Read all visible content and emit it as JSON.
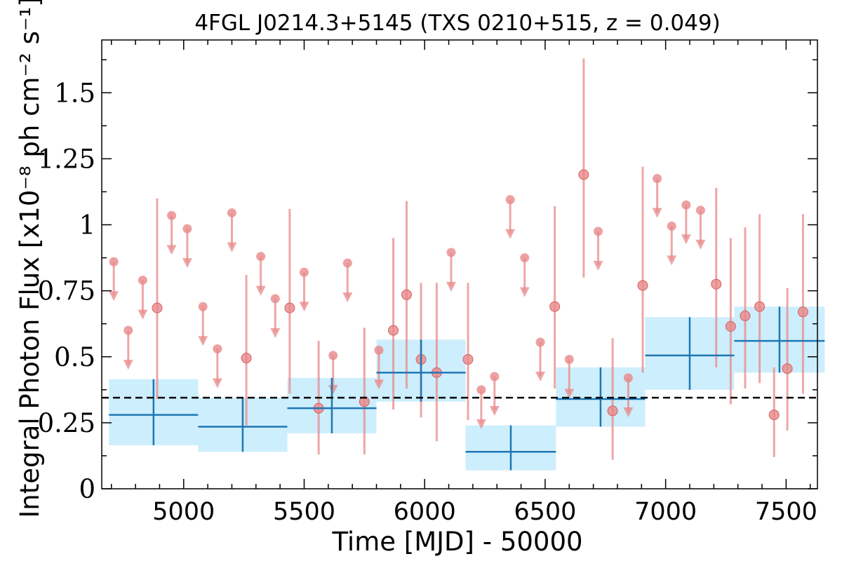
{
  "chart_data": {
    "type": "scatter",
    "title": "4FGL J0214.3+5145 (TXS 0210+515, z = 0.049)",
    "xlabel": "Time [MJD] - 50000",
    "ylabel": "Integral Photon Flux [x10⁻⁸ ph cm⁻² s⁻¹]",
    "xlim": [
      4660,
      7630
    ],
    "ylim": [
      0,
      1.7
    ],
    "x_ticks": [
      5000,
      5500,
      6000,
      6500,
      7000,
      7500
    ],
    "x_tick_labels": [
      "5000",
      "5500",
      "6000",
      "6500",
      "7000",
      "7500"
    ],
    "y_ticks": [
      0,
      0.25,
      0.5,
      0.75,
      1,
      1.25,
      1.5
    ],
    "y_tick_labels": [
      "0",
      "0.25",
      "0.5",
      "0.75",
      "1",
      "1.25",
      "1.5"
    ],
    "grid": false,
    "mean_flux": 0.345,
    "colors": {
      "fine_bins": "#e8888a",
      "coarse_bins": "#1f77b4",
      "coarse_band": "#cdeefc",
      "mean_line": "#000000"
    },
    "series": [
      {
        "binning": "fine",
        "detections": [
          {
            "x": 4890,
            "y": 0.685,
            "ylo": 0.34,
            "yhi": 1.1
          },
          {
            "x": 5260,
            "y": 0.495,
            "ylo": 0.24,
            "yhi": 0.81
          },
          {
            "x": 5440,
            "y": 0.685,
            "ylo": 0.36,
            "yhi": 1.06
          },
          {
            "x": 5560,
            "y": 0.305,
            "ylo": 0.13,
            "yhi": 0.56
          },
          {
            "x": 5750,
            "y": 0.33,
            "ylo": 0.13,
            "yhi": 0.61
          },
          {
            "x": 5870,
            "y": 0.6,
            "ylo": 0.3,
            "yhi": 0.95
          },
          {
            "x": 5925,
            "y": 0.735,
            "ylo": 0.38,
            "yhi": 1.09
          },
          {
            "x": 5985,
            "y": 0.49,
            "ylo": 0.27,
            "yhi": 0.78
          },
          {
            "x": 6050,
            "y": 0.44,
            "ylo": 0.18,
            "yhi": 0.78
          },
          {
            "x": 6180,
            "y": 0.49,
            "ylo": 0.26,
            "yhi": 0.78
          },
          {
            "x": 6540,
            "y": 0.69,
            "ylo": 0.38,
            "yhi": 1.07
          },
          {
            "x": 6660,
            "y": 1.19,
            "ylo": 0.8,
            "yhi": 1.63
          },
          {
            "x": 6780,
            "y": 0.295,
            "ylo": 0.11,
            "yhi": 0.57
          },
          {
            "x": 6905,
            "y": 0.77,
            "ylo": 0.44,
            "yhi": 1.22
          },
          {
            "x": 7210,
            "y": 0.775,
            "ylo": 0.46,
            "yhi": 1.14
          },
          {
            "x": 7270,
            "y": 0.615,
            "ylo": 0.32,
            "yhi": 0.95
          },
          {
            "x": 7330,
            "y": 0.655,
            "ylo": 0.38,
            "yhi": 0.99
          },
          {
            "x": 7390,
            "y": 0.69,
            "ylo": 0.4,
            "yhi": 1.04
          },
          {
            "x": 7450,
            "y": 0.28,
            "ylo": 0.12,
            "yhi": 0.46
          },
          {
            "x": 7505,
            "y": 0.455,
            "ylo": 0.22,
            "yhi": 0.76
          },
          {
            "x": 7570,
            "y": 0.67,
            "ylo": 0.36,
            "yhi": 1.04
          }
        ],
        "upper_limits": [
          {
            "x": 4710,
            "y": 0.86
          },
          {
            "x": 4770,
            "y": 0.6
          },
          {
            "x": 4830,
            "y": 0.79
          },
          {
            "x": 4950,
            "y": 1.035
          },
          {
            "x": 5015,
            "y": 0.985
          },
          {
            "x": 5080,
            "y": 0.69
          },
          {
            "x": 5140,
            "y": 0.53
          },
          {
            "x": 5200,
            "y": 1.045
          },
          {
            "x": 5320,
            "y": 0.88
          },
          {
            "x": 5380,
            "y": 0.72
          },
          {
            "x": 5500,
            "y": 0.82
          },
          {
            "x": 5620,
            "y": 0.505
          },
          {
            "x": 5680,
            "y": 0.855
          },
          {
            "x": 5810,
            "y": 0.525
          },
          {
            "x": 6110,
            "y": 0.895
          },
          {
            "x": 6235,
            "y": 0.375
          },
          {
            "x": 6290,
            "y": 0.425
          },
          {
            "x": 6355,
            "y": 1.095
          },
          {
            "x": 6415,
            "y": 0.875
          },
          {
            "x": 6480,
            "y": 0.555
          },
          {
            "x": 6600,
            "y": 0.49
          },
          {
            "x": 6720,
            "y": 0.975
          },
          {
            "x": 6845,
            "y": 0.42
          },
          {
            "x": 6965,
            "y": 1.175
          },
          {
            "x": 7025,
            "y": 0.995
          },
          {
            "x": 7085,
            "y": 1.075
          },
          {
            "x": 7145,
            "y": 1.055
          }
        ]
      },
      {
        "binning": "coarse",
        "bins": [
          {
            "x0": 4690,
            "x1": 5060,
            "y": 0.28,
            "ylo": 0.165,
            "yhi": 0.415
          },
          {
            "x0": 5060,
            "x1": 5430,
            "y": 0.235,
            "ylo": 0.14,
            "yhi": 0.345
          },
          {
            "x0": 5430,
            "x1": 5800,
            "y": 0.305,
            "ylo": 0.21,
            "yhi": 0.42
          },
          {
            "x0": 5800,
            "x1": 6170,
            "y": 0.44,
            "ylo": 0.33,
            "yhi": 0.565
          },
          {
            "x0": 6170,
            "x1": 6545,
            "y": 0.14,
            "ylo": 0.07,
            "yhi": 0.24
          },
          {
            "x0": 6545,
            "x1": 6915,
            "y": 0.34,
            "ylo": 0.235,
            "yhi": 0.46
          },
          {
            "x0": 6915,
            "x1": 7285,
            "y": 0.505,
            "ylo": 0.375,
            "yhi": 0.65
          },
          {
            "x0": 7285,
            "x1": 7660,
            "y": 0.56,
            "ylo": 0.44,
            "yhi": 0.69
          }
        ]
      }
    ]
  }
}
